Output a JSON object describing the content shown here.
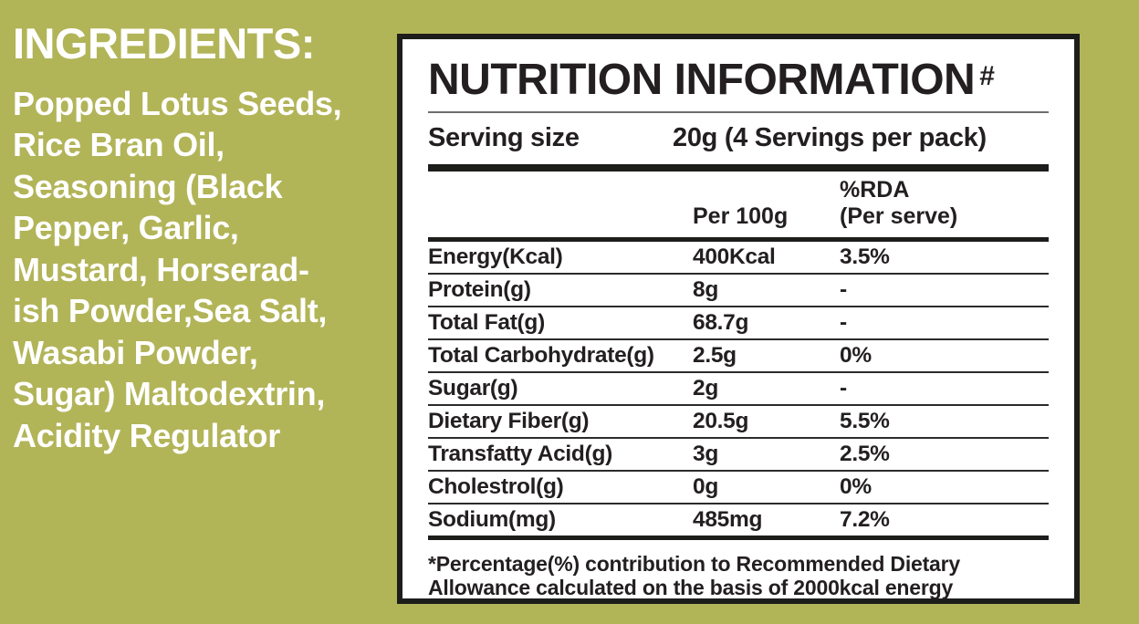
{
  "colors": {
    "background": "#b2b458",
    "panel": "#ffffff",
    "panel_border": "#1d1d1b",
    "text_dark": "#231f20",
    "ingredients_text": "#ffffff"
  },
  "ingredients": {
    "heading": "INGREDIENTS:",
    "lines": [
      "Popped Lotus Seeds,",
      "Rice Bran Oil,",
      "Seasoning (Black",
      "Pepper, Garlic,",
      "Mustard, Horserad-",
      "ish Powder,Sea Salt,",
      "Wasabi Powder,",
      "Sugar) Maltodextrin,",
      "Acidity Regulator"
    ]
  },
  "nutrition": {
    "title": "NUTRITION INFORMATION",
    "title_mark": "#",
    "serving": {
      "label": "Serving size",
      "value": "20g (4 Servings per pack)"
    },
    "columns": {
      "per100g": "Per 100g",
      "rda_line1": "%RDA",
      "rda_line2": "(Per serve)"
    },
    "rows": [
      {
        "label": "Energy(Kcal)",
        "per100g": "400Kcal",
        "rda": "3.5%"
      },
      {
        "label": "Protein(g)",
        "per100g": "8g",
        "rda": "-"
      },
      {
        "label": "Total Fat(g)",
        "per100g": "68.7g",
        "rda": "-"
      },
      {
        "label": "Total Carbohydrate(g)",
        "per100g": "2.5g",
        "rda": "0%"
      },
      {
        "label": "Sugar(g)",
        "per100g": "2g",
        "rda": "-"
      },
      {
        "label": "Dietary Fiber(g)",
        "per100g": "20.5g",
        "rda": "5.5%"
      },
      {
        "label": "Transfatty Acid(g)",
        "per100g": "3g",
        "rda": "2.5%"
      },
      {
        "label": "Cholestrol(g)",
        "per100g": "0g",
        "rda": "0%"
      },
      {
        "label": "Sodium(mg)",
        "per100g": "485mg",
        "rda": "7.2%"
      }
    ],
    "footnote_line1": "*Percentage(%) contribution to Recommended Dietary",
    "footnote_line2": "Allowance calculated on the basis of 2000kcal energy"
  }
}
